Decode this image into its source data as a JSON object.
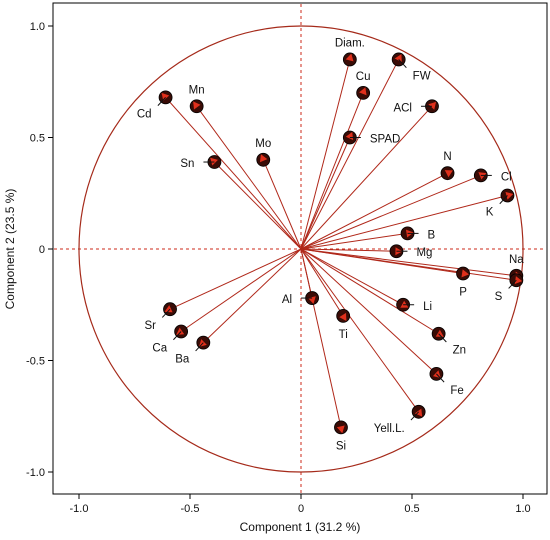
{
  "chart_data": {
    "type": "scatter",
    "subtype": "pca-correlation-circle",
    "title": "",
    "xlabel": "Component 1  (31.2 %)",
    "ylabel": "Component 2  (23.5 %)",
    "xlim": [
      -1.1,
      1.1
    ],
    "ylim": [
      -1.1,
      1.1
    ],
    "x_ticks": [
      -1.0,
      -0.5,
      0,
      0.5,
      1.0
    ],
    "y_ticks": [
      -1.0,
      -0.5,
      0,
      0.5,
      1.0
    ],
    "x_tick_labels": [
      "-1.0",
      "-0.5",
      "0",
      "0.5",
      "1.0"
    ],
    "y_tick_labels": [
      "-1.0",
      "-0.5",
      "0",
      "0.5",
      "1.0"
    ],
    "circle_radius": 1.0,
    "grid": false,
    "colors": {
      "vector": "#b0281a",
      "circle": "#a52a1a",
      "zero_line": "#cc2a1a",
      "marker_fill": "#3a0c06",
      "marker_tip": "#e0301c"
    },
    "points": [
      {
        "label": "Diam.",
        "x": 0.22,
        "y": 0.85,
        "anchor": "up"
      },
      {
        "label": "FW",
        "x": 0.44,
        "y": 0.85,
        "anchor": "down-right"
      },
      {
        "label": "Cu",
        "x": 0.28,
        "y": 0.7,
        "anchor": "up"
      },
      {
        "label": "ACl",
        "x": 0.59,
        "y": 0.64,
        "anchor": "left"
      },
      {
        "label": "SPAD",
        "x": 0.22,
        "y": 0.5,
        "anchor": "right"
      },
      {
        "label": "Mn",
        "x": -0.47,
        "y": 0.64,
        "anchor": "up"
      },
      {
        "label": "Cd",
        "x": -0.61,
        "y": 0.68,
        "anchor": "down-left"
      },
      {
        "label": "Mo",
        "x": -0.17,
        "y": 0.4,
        "anchor": "up"
      },
      {
        "label": "Sn",
        "x": -0.39,
        "y": 0.39,
        "anchor": "left"
      },
      {
        "label": "N",
        "x": 0.66,
        "y": 0.34,
        "anchor": "up"
      },
      {
        "label": "Cl",
        "x": 0.81,
        "y": 0.33,
        "anchor": "right"
      },
      {
        "label": "K",
        "x": 0.93,
        "y": 0.24,
        "anchor": "down-left"
      },
      {
        "label": "B",
        "x": 0.48,
        "y": 0.07,
        "anchor": "right"
      },
      {
        "label": "Mg",
        "x": 0.43,
        "y": -0.01,
        "anchor": "right"
      },
      {
        "label": "Na",
        "x": 0.97,
        "y": -0.12,
        "anchor": "up"
      },
      {
        "label": "S",
        "x": 0.97,
        "y": -0.14,
        "anchor": "down-left"
      },
      {
        "label": "P",
        "x": 0.73,
        "y": -0.11,
        "anchor": "down"
      },
      {
        "label": "Li",
        "x": 0.46,
        "y": -0.25,
        "anchor": "right"
      },
      {
        "label": "Al",
        "x": 0.05,
        "y": -0.22,
        "anchor": "left"
      },
      {
        "label": "Ti",
        "x": 0.19,
        "y": -0.3,
        "anchor": "down"
      },
      {
        "label": "Zn",
        "x": 0.62,
        "y": -0.38,
        "anchor": "down-right"
      },
      {
        "label": "Fe",
        "x": 0.61,
        "y": -0.56,
        "anchor": "down-right"
      },
      {
        "label": "Yell.L.",
        "x": 0.53,
        "y": -0.73,
        "anchor": "down-left"
      },
      {
        "label": "Si",
        "x": 0.18,
        "y": -0.8,
        "anchor": "down"
      },
      {
        "label": "Sr",
        "x": -0.59,
        "y": -0.27,
        "anchor": "down-left"
      },
      {
        "label": "Ca",
        "x": -0.54,
        "y": -0.37,
        "anchor": "down-left"
      },
      {
        "label": "Ba",
        "x": -0.44,
        "y": -0.42,
        "anchor": "down-left"
      }
    ]
  }
}
